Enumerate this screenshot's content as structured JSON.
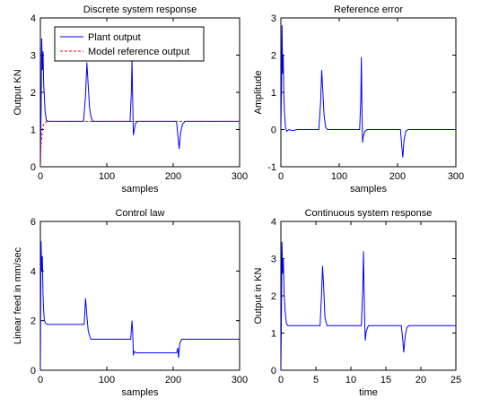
{
  "chart_data": [
    {
      "type": "line",
      "title": "Discrete system response",
      "xlabel": "samples",
      "ylabel": "Output KN",
      "xlim": [
        0,
        300
      ],
      "ylim": [
        0,
        4
      ],
      "xticks": [
        0,
        100,
        200,
        300
      ],
      "yticks": [
        0,
        1,
        2,
        3,
        4
      ],
      "legend": {
        "position": "top-left"
      },
      "series": [
        {
          "name": "Plant output",
          "color": "#0000ff",
          "style": "solid",
          "points": [
            [
              0,
              0
            ],
            [
              1,
              1.4
            ],
            [
              2,
              3.45
            ],
            [
              3,
              2.6
            ],
            [
              4,
              3.1
            ],
            [
              5,
              2.2
            ],
            [
              6,
              1.9
            ],
            [
              7,
              1.5
            ],
            [
              9,
              1.25
            ],
            [
              12,
              1.22
            ],
            [
              20,
              1.22
            ],
            [
              65,
              1.22
            ],
            [
              68,
              1.9
            ],
            [
              70,
              2.8
            ],
            [
              72,
              2.2
            ],
            [
              74,
              1.6
            ],
            [
              76,
              1.35
            ],
            [
              79,
              1.22
            ],
            [
              135,
              1.22
            ],
            [
              137,
              2.0
            ],
            [
              138,
              2.9
            ],
            [
              139,
              1.8
            ],
            [
              140,
              0.85
            ],
            [
              141,
              0.95
            ],
            [
              143,
              1.15
            ],
            [
              146,
              1.22
            ],
            [
              205,
              1.22
            ],
            [
              207,
              0.85
            ],
            [
              209,
              0.48
            ],
            [
              211,
              0.9
            ],
            [
              214,
              1.15
            ],
            [
              218,
              1.22
            ],
            [
              300,
              1.22
            ]
          ]
        },
        {
          "name": "Model reference output",
          "color": "#ff0000",
          "style": "dashed",
          "points": [
            [
              0,
              0
            ],
            [
              1,
              0.6
            ],
            [
              3,
              1.0
            ],
            [
              5,
              1.15
            ],
            [
              8,
              1.2
            ],
            [
              12,
              1.22
            ],
            [
              300,
              1.22
            ]
          ]
        }
      ]
    },
    {
      "type": "line",
      "title": "Reference error",
      "xlabel": "samples",
      "ylabel": "Amplitude",
      "xlim": [
        0,
        300
      ],
      "ylim": [
        -1,
        3
      ],
      "xticks": [
        0,
        100,
        200,
        300
      ],
      "yticks": [
        -1,
        0,
        1,
        2,
        3
      ],
      "series": [
        {
          "color": "#0000ff",
          "style": "solid",
          "points": [
            [
              0,
              0
            ],
            [
              1,
              1.0
            ],
            [
              2,
              2.8
            ],
            [
              3,
              1.5
            ],
            [
              4,
              2.0
            ],
            [
              5,
              1.0
            ],
            [
              6,
              0.5
            ],
            [
              8,
              0.05
            ],
            [
              10,
              -0.05
            ],
            [
              14,
              0
            ],
            [
              20,
              -0.03
            ],
            [
              28,
              0
            ],
            [
              65,
              0
            ],
            [
              68,
              0.7
            ],
            [
              70,
              1.6
            ],
            [
              72,
              1.0
            ],
            [
              74,
              0.4
            ],
            [
              77,
              0.05
            ],
            [
              80,
              0
            ],
            [
              135,
              0
            ],
            [
              137,
              0.8
            ],
            [
              138,
              1.95
            ],
            [
              139,
              0.6
            ],
            [
              140,
              -0.35
            ],
            [
              141,
              -0.2
            ],
            [
              144,
              -0.05
            ],
            [
              148,
              0
            ],
            [
              205,
              0
            ],
            [
              207,
              -0.4
            ],
            [
              209,
              -0.75
            ],
            [
              211,
              -0.3
            ],
            [
              214,
              -0.05
            ],
            [
              218,
              0
            ],
            [
              300,
              0
            ]
          ]
        }
      ]
    },
    {
      "type": "line",
      "title": "Control law",
      "xlabel": "samples",
      "ylabel": "Linear feed in mm/sec",
      "xlim": [
        0,
        300
      ],
      "ylim": [
        0,
        6
      ],
      "xticks": [
        0,
        100,
        200,
        300
      ],
      "yticks": [
        0,
        2,
        4,
        6
      ],
      "series": [
        {
          "color": "#0000ff",
          "style": "solid",
          "points": [
            [
              0,
              0
            ],
            [
              1,
              5.2
            ],
            [
              2,
              4.0
            ],
            [
              3,
              4.6
            ],
            [
              4,
              3.0
            ],
            [
              5,
              2.4
            ],
            [
              6,
              2.0
            ],
            [
              8,
              1.9
            ],
            [
              10,
              1.85
            ],
            [
              66,
              1.85
            ],
            [
              68,
              2.9
            ],
            [
              70,
              2.2
            ],
            [
              72,
              1.6
            ],
            [
              74,
              1.4
            ],
            [
              76,
              1.25
            ],
            [
              80,
              1.25
            ],
            [
              136,
              1.25
            ],
            [
              138,
              2.0
            ],
            [
              139,
              1.6
            ],
            [
              140,
              0.6
            ],
            [
              141,
              0.75
            ],
            [
              145,
              0.7
            ],
            [
              205,
              0.7
            ],
            [
              207,
              0.9
            ],
            [
              208,
              0.5
            ],
            [
              210,
              1.1
            ],
            [
              213,
              1.25
            ],
            [
              220,
              1.25
            ],
            [
              300,
              1.25
            ]
          ]
        }
      ]
    },
    {
      "type": "line",
      "title": "Continuous system response",
      "xlabel": "time",
      "ylabel": "Output in KN",
      "xlim": [
        0,
        25
      ],
      "ylim": [
        0,
        4
      ],
      "xticks": [
        0,
        5,
        10,
        15,
        20,
        25
      ],
      "yticks": [
        0,
        1,
        2,
        3,
        4
      ],
      "series": [
        {
          "color": "#0000ff",
          "style": "solid",
          "points": [
            [
              0,
              0
            ],
            [
              0.08,
              1.5
            ],
            [
              0.15,
              3.45
            ],
            [
              0.25,
              2.6
            ],
            [
              0.35,
              3.0
            ],
            [
              0.45,
              2.1
            ],
            [
              0.6,
              1.6
            ],
            [
              0.8,
              1.25
            ],
            [
              1.0,
              1.2
            ],
            [
              5.6,
              1.2
            ],
            [
              5.8,
              2.0
            ],
            [
              5.95,
              2.8
            ],
            [
              6.1,
              2.3
            ],
            [
              6.3,
              1.4
            ],
            [
              6.6,
              1.2
            ],
            [
              11.5,
              1.2
            ],
            [
              11.7,
              2.2
            ],
            [
              11.8,
              3.2
            ],
            [
              11.95,
              1.5
            ],
            [
              12.05,
              0.8
            ],
            [
              12.2,
              1.05
            ],
            [
              12.5,
              1.2
            ],
            [
              17.2,
              1.2
            ],
            [
              17.4,
              0.85
            ],
            [
              17.55,
              0.48
            ],
            [
              17.75,
              0.9
            ],
            [
              18.0,
              1.15
            ],
            [
              18.3,
              1.2
            ],
            [
              25,
              1.2
            ]
          ]
        }
      ]
    }
  ]
}
